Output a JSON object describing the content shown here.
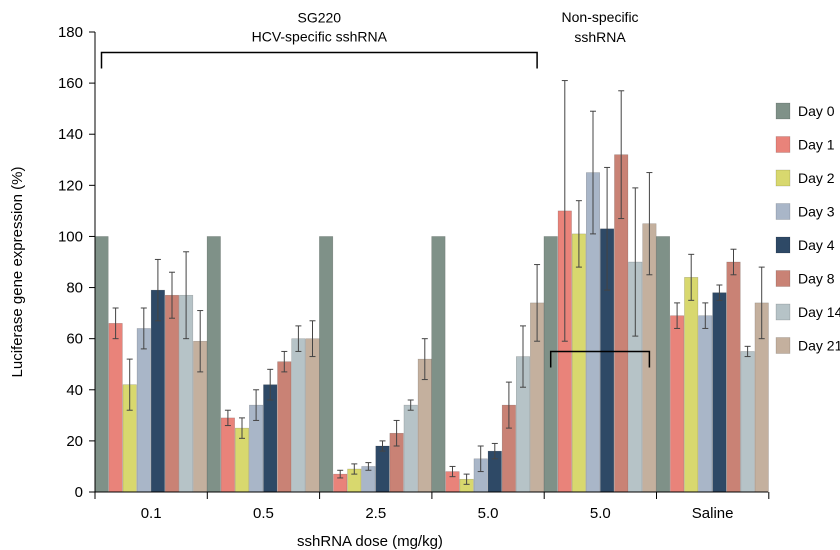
{
  "chart_data": {
    "type": "bar",
    "title": "",
    "xlabel": "sshRNA dose (mg/kg)",
    "ylabel": "Luciferase gene expression (%)",
    "ylim": [
      0,
      180
    ],
    "yticks": [
      0,
      20,
      40,
      60,
      80,
      100,
      120,
      140,
      160,
      180
    ],
    "grid": false,
    "legend_position": "right",
    "categories": [
      "0.1",
      "0.5",
      "2.5",
      "5.0",
      "5.0",
      "Saline"
    ],
    "series": [
      {
        "name": "Day 0",
        "color": "#7f9188",
        "values": [
          100,
          100,
          100,
          100,
          100,
          100
        ],
        "errors": [
          0,
          0,
          0,
          0,
          0,
          0
        ]
      },
      {
        "name": "Day 1",
        "color": "#e9837a",
        "values": [
          66,
          29,
          7,
          8,
          110,
          69
        ],
        "errors": [
          6,
          3,
          1.5,
          2,
          51,
          5
        ]
      },
      {
        "name": "Day 2",
        "color": "#d8d86e",
        "values": [
          42,
          25,
          9,
          5,
          101,
          84
        ],
        "errors": [
          10,
          4,
          2,
          2,
          13,
          9
        ]
      },
      {
        "name": "Day 3",
        "color": "#a9b6c8",
        "values": [
          64,
          34,
          10,
          13,
          125,
          69
        ],
        "errors": [
          8,
          6,
          1.5,
          5,
          24,
          5
        ]
      },
      {
        "name": "Day 4",
        "color": "#2e4966",
        "values": [
          79,
          42,
          18,
          16,
          103,
          78
        ],
        "errors": [
          12,
          6,
          2,
          3,
          24,
          3
        ]
      },
      {
        "name": "Day 8",
        "color": "#c98275",
        "values": [
          77,
          51,
          23,
          34,
          132,
          90
        ],
        "errors": [
          9,
          4,
          5,
          9,
          25,
          5
        ]
      },
      {
        "name": "Day 14",
        "color": "#b6c3c7",
        "values": [
          77,
          60,
          34,
          53,
          90,
          55
        ],
        "errors": [
          17,
          5,
          2,
          12,
          29,
          2
        ]
      },
      {
        "name": "Day 21",
        "color": "#c4b09e",
        "values": [
          59,
          60,
          52,
          74,
          105,
          74
        ],
        "errors": [
          12,
          7,
          8,
          15,
          20,
          14
        ]
      }
    ],
    "annotations": [
      {
        "lines": [
          "SG220",
          "HCV-specific sshRNA"
        ],
        "from_group": 0,
        "to_group": 3
      },
      {
        "lines": [
          "Non-specific",
          "sshRNA"
        ],
        "from_group": 4,
        "to_group": 4
      }
    ]
  }
}
